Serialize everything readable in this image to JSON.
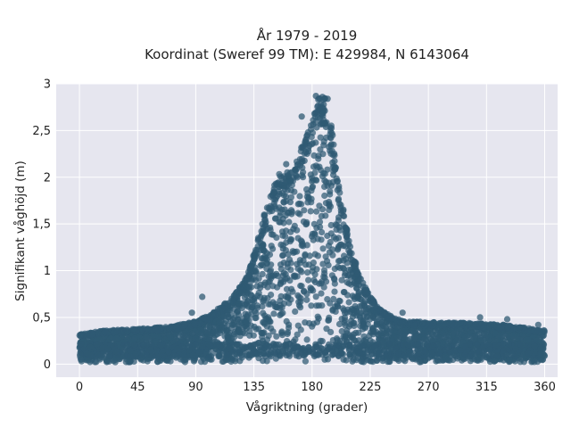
{
  "chart_data": {
    "type": "scatter",
    "title_line1": "År 1979 - 2019",
    "title_line2": "Koordinat (Sweref 99 TM): E 429984, N 6143064",
    "xlabel": "Vågriktning (grader)",
    "ylabel": "Signifikant våghöjd (m)",
    "xlim": [
      -18,
      370
    ],
    "ylim": [
      -0.14,
      3.0
    ],
    "x_ticks": [
      0,
      45,
      90,
      135,
      180,
      225,
      270,
      315,
      360
    ],
    "x_tick_labels": [
      "0",
      "45",
      "90",
      "135",
      "180",
      "225",
      "270",
      "315",
      "360"
    ],
    "y_ticks": [
      0,
      0.5,
      1,
      1.5,
      2,
      2.5,
      3
    ],
    "y_tick_labels": [
      "0",
      "0,5",
      "1",
      "1,5",
      "2",
      "2,5",
      "3"
    ],
    "grid": true,
    "marker_color": "#2f5a73",
    "plot_background": "#e6e6ef",
    "envelope": {
      "x": [
        0,
        20,
        45,
        70,
        90,
        100,
        110,
        120,
        130,
        135,
        140,
        145,
        150,
        155,
        160,
        165,
        170,
        175,
        180,
        185,
        190,
        195,
        200,
        205,
        210,
        215,
        220,
        225,
        230,
        240,
        250,
        270,
        300,
        330,
        360
      ],
      "y_max": [
        0.32,
        0.36,
        0.38,
        0.4,
        0.46,
        0.52,
        0.62,
        0.74,
        0.95,
        1.22,
        1.45,
        1.7,
        1.9,
        2.05,
        2.05,
        2.1,
        2.3,
        2.45,
        2.6,
        2.85,
        2.85,
        2.55,
        2.0,
        1.6,
        1.25,
        1.05,
        0.85,
        0.74,
        0.62,
        0.52,
        0.46,
        0.45,
        0.44,
        0.42,
        0.36
      ]
    },
    "outliers": [
      {
        "x": 183,
        "y": 2.87
      },
      {
        "x": 188,
        "y": 2.86
      },
      {
        "x": 192,
        "y": 2.84
      },
      {
        "x": 189,
        "y": 2.78
      },
      {
        "x": 172,
        "y": 2.65
      },
      {
        "x": 160,
        "y": 2.14
      },
      {
        "x": 95,
        "y": 0.72
      },
      {
        "x": 87,
        "y": 0.55
      },
      {
        "x": 250,
        "y": 0.55
      },
      {
        "x": 310,
        "y": 0.5
      },
      {
        "x": 331,
        "y": 0.48
      },
      {
        "x": 355,
        "y": 0.42
      }
    ]
  }
}
